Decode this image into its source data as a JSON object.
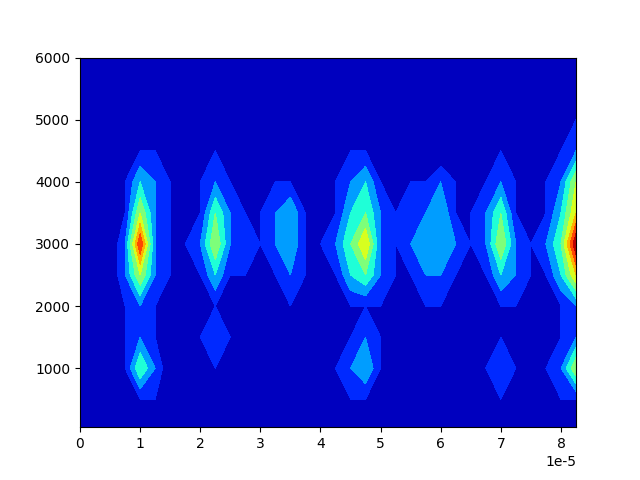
{
  "chart_data": {
    "type": "contour",
    "x": [
      0.0,
      2.5e-06,
      5e-06,
      7.5e-06,
      1e-05,
      1.25e-05,
      1.5e-05,
      1.75e-05,
      2e-05,
      2.25e-05,
      2.5e-05,
      2.75e-05,
      3e-05,
      3.25e-05,
      3.5e-05,
      3.75e-05,
      4e-05,
      4.25e-05,
      4.5e-05,
      4.75e-05,
      5e-05,
      5.25e-05,
      5.5e-05,
      5.75e-05,
      6e-05,
      6.25e-05,
      6.5e-05,
      6.75e-05,
      7e-05,
      7.25e-05,
      7.5e-05,
      7.75e-05,
      8e-05,
      8.25e-05
    ],
    "y": [
      50,
      500,
      1000,
      1500,
      2000,
      2500,
      3000,
      3500,
      4000,
      4500,
      5000,
      5500,
      6000
    ],
    "z": [
      [
        1,
        1,
        0,
        0,
        0,
        0,
        0,
        0,
        0,
        0,
        0,
        0,
        0
      ],
      [
        1,
        1,
        0,
        0,
        0,
        1,
        1,
        1,
        0,
        0,
        0,
        0,
        0
      ],
      [
        1,
        1,
        0,
        0,
        0,
        0,
        0,
        0,
        0,
        0,
        0,
        0,
        0
      ],
      [
        1,
        1,
        1,
        1,
        1,
        2,
        2,
        1,
        1,
        0,
        0,
        0,
        0
      ],
      [
        1,
        1,
        4,
        2,
        2,
        5,
        8,
        5,
        3,
        1,
        1,
        0,
        0
      ],
      [
        1,
        1,
        2,
        1,
        1,
        2,
        2,
        2,
        2,
        1,
        0,
        0,
        0
      ],
      [
        0,
        1,
        0,
        0,
        0,
        1,
        1,
        1,
        1,
        1,
        0,
        0,
        0
      ],
      [
        0,
        0,
        0,
        0,
        0,
        0,
        1,
        1,
        0,
        0,
        0,
        0,
        0
      ],
      [
        0,
        0,
        0,
        1,
        1,
        1,
        2,
        1,
        1,
        1,
        0,
        0,
        0
      ],
      [
        0,
        0,
        1,
        2,
        1,
        3,
        5,
        4,
        2,
        1,
        1,
        0,
        0
      ],
      [
        0,
        0,
        0,
        1,
        1,
        1,
        2,
        2,
        1,
        1,
        0,
        0,
        0
      ],
      [
        0,
        0,
        0,
        0,
        0,
        1,
        2,
        1,
        1,
        0,
        0,
        0,
        0
      ],
      [
        0,
        1,
        1,
        1,
        0,
        1,
        1,
        1,
        1,
        0,
        0,
        0,
        0
      ],
      [
        0,
        1,
        1,
        1,
        0,
        1,
        2,
        2,
        1,
        0,
        0,
        0,
        0
      ],
      [
        0,
        1,
        1,
        1,
        1,
        2,
        3,
        3,
        1,
        1,
        0,
        0,
        0
      ],
      [
        0,
        1,
        1,
        1,
        0,
        1,
        1,
        1,
        1,
        0,
        0,
        0,
        0
      ],
      [
        0,
        1,
        1,
        1,
        0,
        1,
        1,
        1,
        0,
        0,
        0,
        0,
        0
      ],
      [
        0,
        1,
        1,
        1,
        0,
        1,
        2,
        1,
        1,
        1,
        0,
        0,
        0
      ],
      [
        0,
        1,
        2,
        1,
        1,
        3,
        4,
        3,
        2,
        1,
        1,
        0,
        0
      ],
      [
        0,
        1,
        3,
        2,
        1,
        4,
        6,
        4,
        3,
        1,
        1,
        0,
        0
      ],
      [
        0,
        0,
        1,
        1,
        1,
        2,
        2,
        2,
        1,
        0,
        0,
        0,
        0
      ],
      [
        0,
        0,
        0,
        0,
        0,
        1,
        1,
        1,
        1,
        0,
        0,
        0,
        0
      ],
      [
        0,
        0,
        0,
        1,
        1,
        1,
        2,
        2,
        1,
        0,
        0,
        0,
        0
      ],
      [
        0,
        0,
        1,
        1,
        1,
        2,
        3,
        2,
        1,
        1,
        0,
        0,
        0
      ],
      [
        0,
        0,
        1,
        1,
        1,
        2,
        3,
        3,
        2,
        0,
        0,
        0,
        0
      ],
      [
        0,
        0,
        0,
        1,
        1,
        1,
        2,
        1,
        1,
        0,
        0,
        0,
        0
      ],
      [
        0,
        1,
        0,
        0,
        0,
        1,
        1,
        1,
        0,
        0,
        0,
        0,
        0
      ],
      [
        0,
        1,
        1,
        1,
        1,
        1,
        2,
        2,
        1,
        1,
        0,
        0,
        0
      ],
      [
        0,
        1,
        2,
        1,
        1,
        3,
        5,
        4,
        2,
        1,
        0,
        0,
        0
      ],
      [
        0,
        1,
        1,
        1,
        1,
        2,
        2,
        1,
        1,
        0,
        0,
        0,
        0
      ],
      [
        0,
        1,
        1,
        0,
        0,
        1,
        1,
        1,
        1,
        0,
        0,
        0,
        0
      ],
      [
        0,
        1,
        1,
        0,
        0,
        1,
        2,
        1,
        1,
        0,
        0,
        0,
        0
      ],
      [
        0,
        1,
        2,
        1,
        1,
        3,
        4,
        3,
        2,
        1,
        1,
        0,
        0
      ],
      [
        1,
        1,
        5,
        2,
        2,
        6,
        9,
        6,
        5,
        2,
        1,
        1,
        0
      ]
    ],
    "levels": [
      0,
      1,
      2,
      3,
      4,
      5,
      6,
      7,
      8,
      9
    ],
    "xlim": [
      0,
      8.25e-05
    ],
    "xticks": [
      0,
      {
        "value": 1e-05,
        "label": "1"
      },
      {
        "value": 2e-05,
        "label": "2"
      },
      {
        "value": 3e-05,
        "label": "3"
      },
      {
        "value": 4e-05,
        "label": "4"
      },
      {
        "value": 5e-05,
        "label": "5"
      },
      {
        "value": 6e-05,
        "label": "6"
      },
      {
        "value": 7e-05,
        "label": "7"
      },
      {
        "value": 8e-05,
        "label": "8"
      }
    ],
    "x_offset_text": "1e-5",
    "ylim": [
      50,
      6000
    ],
    "yticks": [
      1000,
      2000,
      3000,
      4000,
      5000,
      6000
    ],
    "color": "jet"
  }
}
